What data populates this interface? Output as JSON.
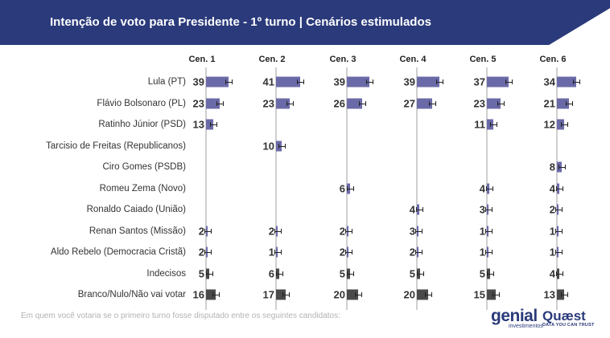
{
  "title": "Intenção de voto para Presidente - 1º turno | Cenários estimulados",
  "footnote": "Em quem você votaria se o primeiro turno fosse disputado entre os seguintes candidatos:",
  "logos": {
    "genial": "genial",
    "genial_sub": "investimentos",
    "quaest": "Quæst",
    "quaest_sub": "DATA YOU CAN TRUST"
  },
  "colors": {
    "header": "#2a3a7a",
    "candidate_bar": "#6b6aa8",
    "other_bar": "#4a4a4a"
  },
  "chart_data": {
    "type": "bar",
    "orientation": "horizontal",
    "title": "Intenção de voto para Presidente - 1º turno | Cenários estimulados",
    "scenarios": [
      "Cen. 1",
      "Cen. 2",
      "Cen. 3",
      "Cen. 4",
      "Cen. 5",
      "Cen. 6"
    ],
    "rows": [
      {
        "label": "Lula (PT)",
        "kind": "candidate",
        "values": [
          39,
          41,
          39,
          39,
          37,
          34
        ]
      },
      {
        "label": "Flávio Bolsonaro (PL)",
        "kind": "candidate",
        "values": [
          23,
          23,
          26,
          27,
          23,
          21
        ]
      },
      {
        "label": "Ratinho Júnior (PSD)",
        "kind": "candidate",
        "values": [
          13,
          null,
          null,
          null,
          11,
          12
        ]
      },
      {
        "label": "Tarcisio de Freitas (Republicanos)",
        "kind": "candidate",
        "values": [
          null,
          10,
          null,
          null,
          null,
          null
        ]
      },
      {
        "label": "Ciro Gomes (PSDB)",
        "kind": "candidate",
        "values": [
          null,
          null,
          null,
          null,
          null,
          8
        ]
      },
      {
        "label": "Romeu Zema (Novo)",
        "kind": "candidate",
        "values": [
          null,
          null,
          6,
          null,
          4,
          4
        ]
      },
      {
        "label": "Ronaldo Caiado (União)",
        "kind": "candidate",
        "values": [
          null,
          null,
          null,
          4,
          3,
          2
        ]
      },
      {
        "label": "Renan Santos (Missão)",
        "kind": "candidate",
        "values": [
          2,
          2,
          2,
          3,
          1,
          1
        ]
      },
      {
        "label": "Aldo Rebelo (Democracia Cristã)",
        "kind": "candidate",
        "values": [
          2,
          1,
          2,
          2,
          1,
          1
        ]
      },
      {
        "label": "Indecisos",
        "kind": "other",
        "values": [
          5,
          6,
          5,
          5,
          5,
          4
        ]
      },
      {
        "label": "Branco/Nulo/Não vai votar",
        "kind": "other",
        "values": [
          16,
          17,
          20,
          20,
          15,
          13
        ]
      }
    ],
    "unit": "%",
    "error_bars": true,
    "grid": false
  }
}
